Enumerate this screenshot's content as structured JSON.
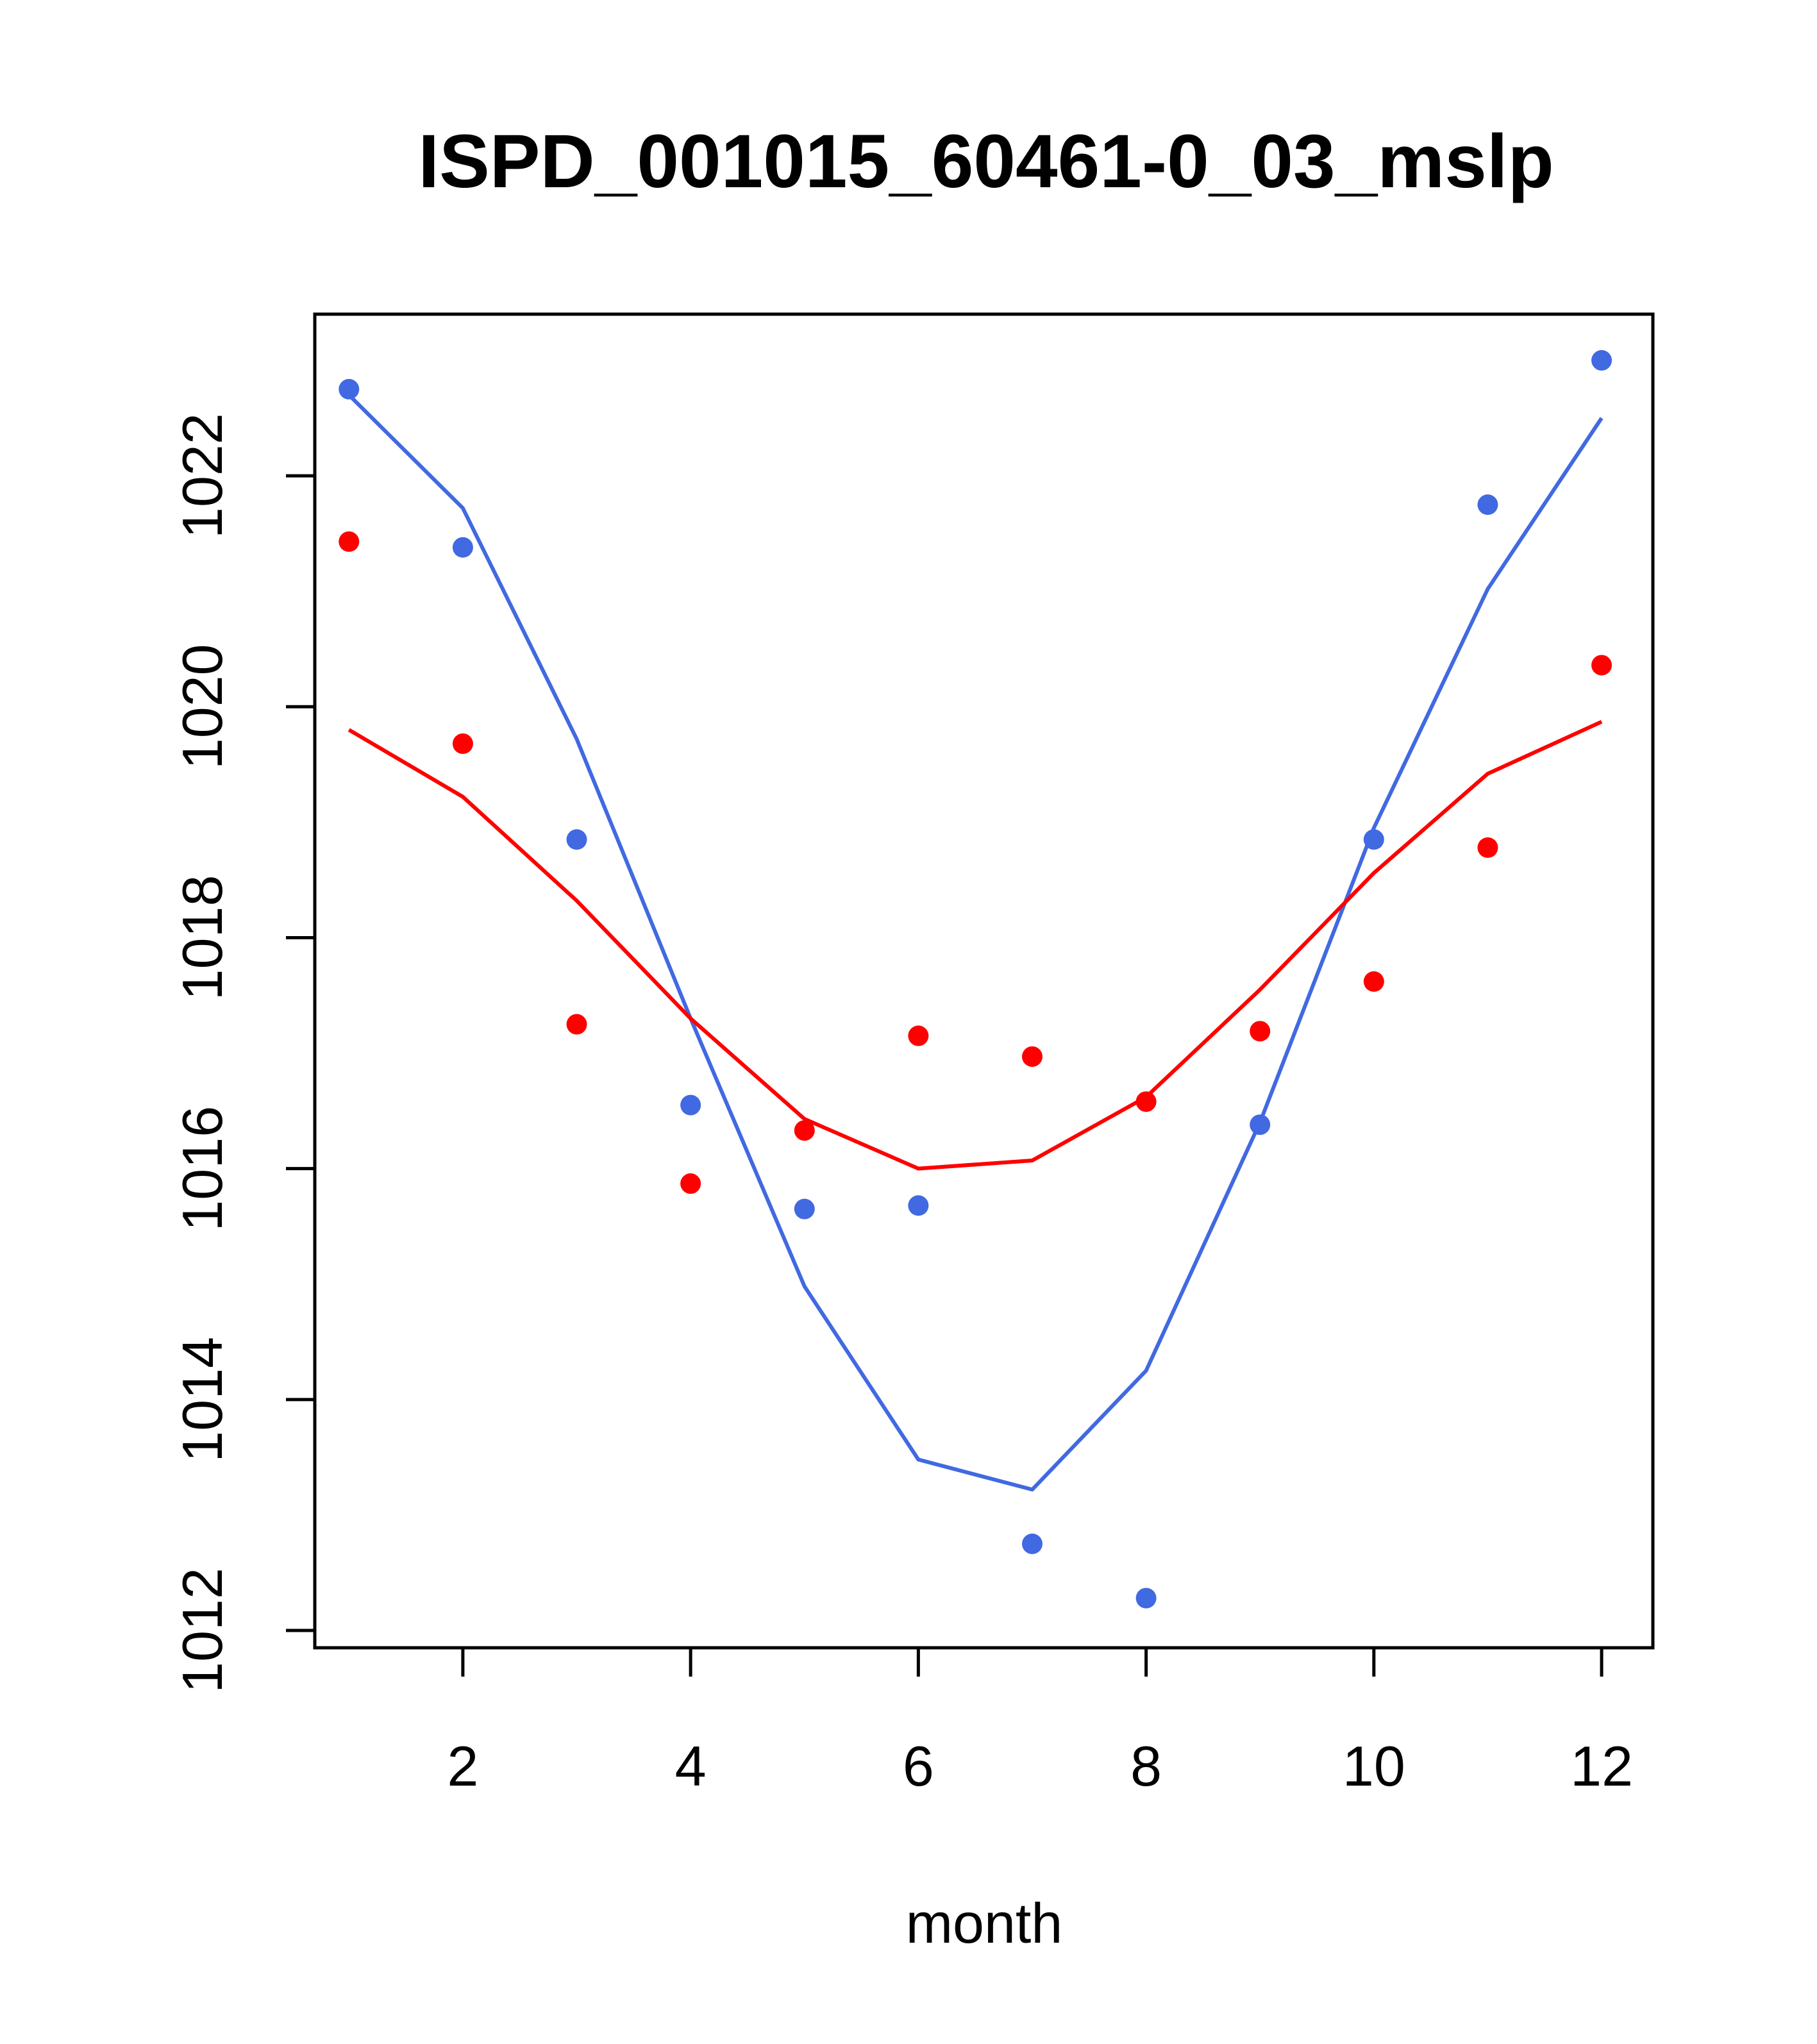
{
  "chart_data": {
    "type": "line",
    "title": "ISPD_001015_60461-0_03_mslp",
    "xlabel": "month",
    "ylabel": "",
    "xlim": [
      0.7,
      12.45
    ],
    "ylim": [
      1011.85,
      1023.4
    ],
    "x_ticks": [
      2,
      4,
      6,
      8,
      10,
      12
    ],
    "y_ticks": [
      1012,
      1014,
      1016,
      1018,
      1020,
      1022
    ],
    "x": [
      1,
      2,
      3,
      4,
      5,
      6,
      7,
      8,
      9,
      10,
      11,
      12
    ],
    "series": [
      {
        "name": "blue-points",
        "kind": "points",
        "color": "#4169e1",
        "values": [
          1022.75,
          1021.38,
          1018.85,
          1016.55,
          1015.65,
          1015.68,
          1012.75,
          1012.28,
          1016.38,
          1018.85,
          1021.75,
          1023.0
        ]
      },
      {
        "name": "blue-line",
        "kind": "line",
        "color": "#4169e1",
        "values": [
          1022.7,
          1021.72,
          1019.72,
          1017.3,
          1014.98,
          1013.48,
          1013.22,
          1014.25,
          1016.4,
          1018.95,
          1021.02,
          1022.5
        ]
      },
      {
        "name": "red-points",
        "kind": "points",
        "color": "#ff0000",
        "values": [
          1021.43,
          1019.68,
          1017.25,
          1015.87,
          1016.33,
          1017.15,
          1016.97,
          1016.58,
          1017.19,
          1017.62,
          1018.78,
          1020.36
        ]
      },
      {
        "name": "red-line",
        "kind": "line",
        "color": "#ff0000",
        "values": [
          1019.8,
          1019.22,
          1018.32,
          1017.3,
          1016.43,
          1016.0,
          1016.07,
          1016.62,
          1017.55,
          1018.56,
          1019.42,
          1019.87
        ]
      }
    ],
    "grid": false,
    "legend": "none"
  }
}
